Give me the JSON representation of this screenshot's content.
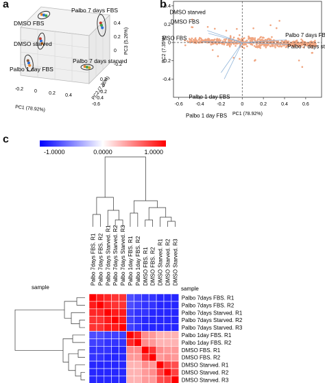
{
  "panels": {
    "a": "a",
    "b": "b",
    "c": "c"
  },
  "chart_data": [
    {
      "type": "scatter",
      "panel": "a",
      "projection": "3d",
      "xlabel": "PC1 (78.92%)",
      "ylabel": "PC2 (7.35%)",
      "zlabel": "PC3 (5.26%)",
      "x_ticks": [
        "-0.2",
        "0",
        "0.2",
        "0.4"
      ],
      "y_ticks": [
        "0.2",
        "0",
        "-0.2",
        "-0.4",
        "-0.6"
      ],
      "z_ticks": [
        "0.4",
        "0.2",
        "0",
        "-0.2"
      ],
      "groups": [
        {
          "label": "DMSO FBS",
          "colors": [
            "#e8862c",
            "#2b6fd6",
            "#3fa34d"
          ]
        },
        {
          "label": "DMSO starved",
          "colors": [
            "#c0392b",
            "#2b6fd6",
            "#e8862c"
          ]
        },
        {
          "label": "Palbo 1 day FBS",
          "colors": [
            "#8a5a3b",
            "#2b6fd6",
            "#e8862c"
          ]
        },
        {
          "label": "Palbo 7 days FBS",
          "colors": [
            "#c0392b",
            "#3fa34d",
            "#2b6fd6"
          ]
        },
        {
          "label": "Palbo 7 days starved",
          "colors": [
            "#e8862c",
            "#3fa34d",
            "#c9a227"
          ]
        }
      ]
    },
    {
      "type": "scatter",
      "panel": "b",
      "xlabel": "PC1 (78.92%)",
      "ylabel": "PC2 (7.35%)",
      "xlim": [
        -0.65,
        0.75
      ],
      "ylim": [
        -0.6,
        0.45
      ],
      "x_ticks": [
        -0.6,
        -0.4,
        -0.2,
        0.0,
        0.2,
        0.4,
        0.6
      ],
      "y_ticks": [
        0.4,
        0.2,
        0.0,
        -0.2,
        -0.4
      ],
      "point_color": "#f0a580",
      "loadings": [
        {
          "label": "DMSO starved",
          "x": -0.33,
          "y": 0.13
        },
        {
          "label": "DMSO FBS",
          "x": -0.32,
          "y": 0.1
        },
        {
          "label": "DMSO FBS",
          "x": -0.38,
          "y": 0.01
        },
        {
          "label": "Palbo 7 days FBS",
          "x": 0.42,
          "y": 0.03
        },
        {
          "label": "Palbo 7 days starved",
          "x": 0.44,
          "y": -0.02
        },
        {
          "label": "Palbo 1 day FBS",
          "x": -0.2,
          "y": -0.33
        },
        {
          "label": "Palbo 1 day FBS",
          "x": -0.17,
          "y": -0.4
        }
      ]
    },
    {
      "type": "heatmap",
      "panel": "c",
      "colorbar": {
        "min": -1.0,
        "mid": 0.0,
        "max": 1.0,
        "labels": [
          "-1.0000",
          "0.0000",
          "1.0000"
        ],
        "colors": [
          "#0000ff",
          "#ffffff",
          "#ff0000"
        ]
      },
      "axis_label_top": "sample",
      "axis_label_right": "sample",
      "columns": [
        "Palbo 7days FBS. R1",
        "Palbo 7days FBS. R2",
        "Palbo 7days Starved. R1",
        "Palbo 7days Starved. R2",
        "Palbo 7days Starved. R3",
        "Palbo 1day FBS. R1",
        "Palbo 1day FBS. R2",
        "DMSO FBS. R1",
        "DMSO FBS. R2",
        "DMSO Starved. R1",
        "DMSO Starved. R2",
        "DMSO Starved. R3"
      ],
      "rows": [
        "Palbo 7days FBS. R1",
        "Palbo 7days FBS. R2",
        "Palbo 7days Starved. R1",
        "Palbo 7days Starved. R2",
        "Palbo 7days Starved. R3",
        "Palbo 1day FBS. R1",
        "Palbo 1day FBS. R2",
        "DMSO FBS. R1",
        "DMSO FBS. R2",
        "DMSO Starved. R1",
        "DMSO Starved. R2",
        "DMSO Starved. R3"
      ],
      "values": [
        [
          1.0,
          0.9,
          0.85,
          0.8,
          0.8,
          -0.7,
          -0.75,
          -0.8,
          -0.8,
          -0.85,
          -0.85,
          -0.85
        ],
        [
          0.9,
          1.0,
          0.85,
          0.8,
          0.8,
          -0.7,
          -0.75,
          -0.8,
          -0.8,
          -0.85,
          -0.85,
          -0.85
        ],
        [
          0.85,
          0.85,
          1.0,
          0.9,
          0.9,
          -0.75,
          -0.8,
          -0.8,
          -0.85,
          -0.85,
          -0.85,
          -0.85
        ],
        [
          0.8,
          0.8,
          0.9,
          1.0,
          0.9,
          -0.75,
          -0.8,
          -0.85,
          -0.85,
          -0.85,
          -0.85,
          -0.85
        ],
        [
          0.8,
          0.8,
          0.9,
          0.9,
          1.0,
          -0.75,
          -0.8,
          -0.85,
          -0.85,
          -0.85,
          -0.85,
          -0.85
        ],
        [
          -0.7,
          -0.7,
          -0.75,
          -0.75,
          -0.75,
          1.0,
          0.85,
          0.45,
          0.4,
          0.3,
          0.3,
          0.3
        ],
        [
          -0.75,
          -0.75,
          -0.8,
          -0.8,
          -0.8,
          0.85,
          1.0,
          0.45,
          0.4,
          0.3,
          0.3,
          0.3
        ],
        [
          -0.8,
          -0.8,
          -0.8,
          -0.85,
          -0.85,
          0.45,
          0.45,
          1.0,
          0.8,
          0.45,
          0.4,
          0.4
        ],
        [
          -0.8,
          -0.8,
          -0.85,
          -0.85,
          -0.85,
          0.4,
          0.4,
          0.8,
          1.0,
          0.4,
          0.45,
          0.4
        ],
        [
          -0.85,
          -0.85,
          -0.85,
          -0.85,
          -0.85,
          0.3,
          0.3,
          0.45,
          0.4,
          1.0,
          0.75,
          0.7
        ],
        [
          -0.85,
          -0.85,
          -0.85,
          -0.85,
          -0.85,
          0.3,
          0.3,
          0.4,
          0.45,
          0.75,
          1.0,
          0.75
        ],
        [
          -0.85,
          -0.85,
          -0.85,
          -0.85,
          -0.85,
          0.3,
          0.3,
          0.4,
          0.4,
          0.7,
          0.75,
          1.0
        ]
      ]
    }
  ]
}
